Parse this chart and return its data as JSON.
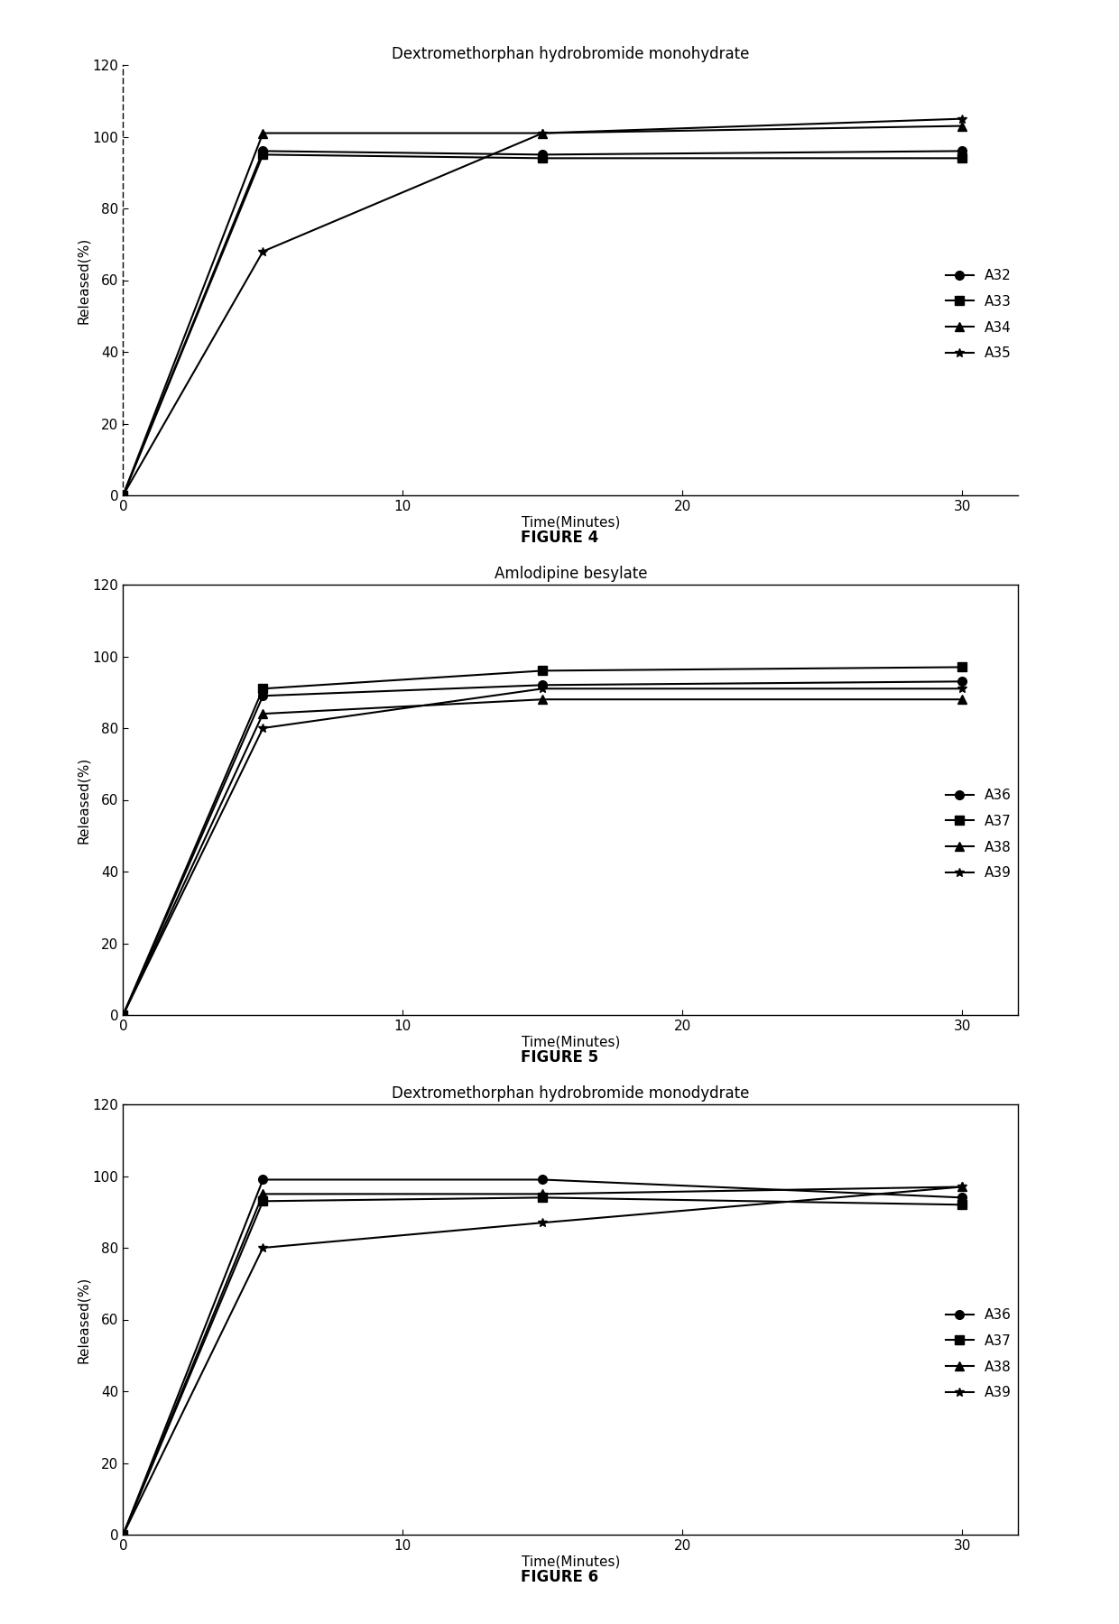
{
  "fig4": {
    "title": "Dextromethorphan hydrobromide monohydrate",
    "xlabel": "Time(Minutes)",
    "ylabel": "Released(%)",
    "figure_label": "FIGURE 4",
    "xlim": [
      0,
      32
    ],
    "ylim": [
      0,
      120
    ],
    "yticks": [
      0,
      20,
      40,
      60,
      80,
      100,
      120
    ],
    "xticks": [
      0,
      10,
      20,
      30
    ],
    "has_box": false,
    "series": [
      {
        "label": "A32",
        "x": [
          0,
          5,
          15,
          30
        ],
        "y": [
          0,
          96,
          95,
          96
        ],
        "marker": "o"
      },
      {
        "label": "A33",
        "x": [
          0,
          5,
          15,
          30
        ],
        "y": [
          0,
          95,
          94,
          94
        ],
        "marker": "s"
      },
      {
        "label": "A34",
        "x": [
          0,
          5,
          15,
          30
        ],
        "y": [
          0,
          101,
          101,
          103
        ],
        "marker": "^"
      },
      {
        "label": "A35",
        "x": [
          0,
          5,
          15,
          30
        ],
        "y": [
          0,
          68,
          101,
          105
        ],
        "marker": "*"
      }
    ]
  },
  "fig5": {
    "title": "Amlodipine besylate",
    "xlabel": "Time(Minutes)",
    "ylabel": "Released(%)",
    "figure_label": "FIGURE 5",
    "xlim": [
      0,
      32
    ],
    "ylim": [
      0,
      120
    ],
    "yticks": [
      0,
      20,
      40,
      60,
      80,
      100,
      120
    ],
    "xticks": [
      0,
      10,
      20,
      30
    ],
    "has_box": true,
    "series": [
      {
        "label": "A36",
        "x": [
          0,
          5,
          15,
          30
        ],
        "y": [
          0,
          89,
          92,
          93
        ],
        "marker": "o"
      },
      {
        "label": "A37",
        "x": [
          0,
          5,
          15,
          30
        ],
        "y": [
          0,
          91,
          96,
          97
        ],
        "marker": "s"
      },
      {
        "label": "A38",
        "x": [
          0,
          5,
          15,
          30
        ],
        "y": [
          0,
          84,
          88,
          88
        ],
        "marker": "^"
      },
      {
        "label": "A39",
        "x": [
          0,
          5,
          15,
          30
        ],
        "y": [
          0,
          80,
          91,
          91
        ],
        "marker": "*"
      }
    ]
  },
  "fig6": {
    "title": "Dextromethorphan hydrobromide monodydrate",
    "xlabel": "Time(Minutes)",
    "ylabel": "Released(%)",
    "figure_label": "FIGURE 6",
    "xlim": [
      0,
      32
    ],
    "ylim": [
      0,
      120
    ],
    "yticks": [
      0,
      20,
      40,
      60,
      80,
      100,
      120
    ],
    "xticks": [
      0,
      10,
      20,
      30
    ],
    "has_box": true,
    "series": [
      {
        "label": "A36",
        "x": [
          0,
          5,
          15,
          30
        ],
        "y": [
          0,
          99,
          99,
          94
        ],
        "marker": "o"
      },
      {
        "label": "A37",
        "x": [
          0,
          5,
          15,
          30
        ],
        "y": [
          0,
          93,
          94,
          92
        ],
        "marker": "s"
      },
      {
        "label": "A38",
        "x": [
          0,
          5,
          15,
          30
        ],
        "y": [
          0,
          95,
          95,
          97
        ],
        "marker": "^"
      },
      {
        "label": "A39",
        "x": [
          0,
          5,
          15,
          30
        ],
        "y": [
          0,
          80,
          87,
          97
        ],
        "marker": "*"
      }
    ]
  },
  "line_color": "#000000",
  "background_color": "#ffffff",
  "font_size": 11,
  "title_font_size": 12,
  "figure_label_font_size": 12,
  "marker_size": 7,
  "line_width": 1.5,
  "legend_fontsize": 11
}
